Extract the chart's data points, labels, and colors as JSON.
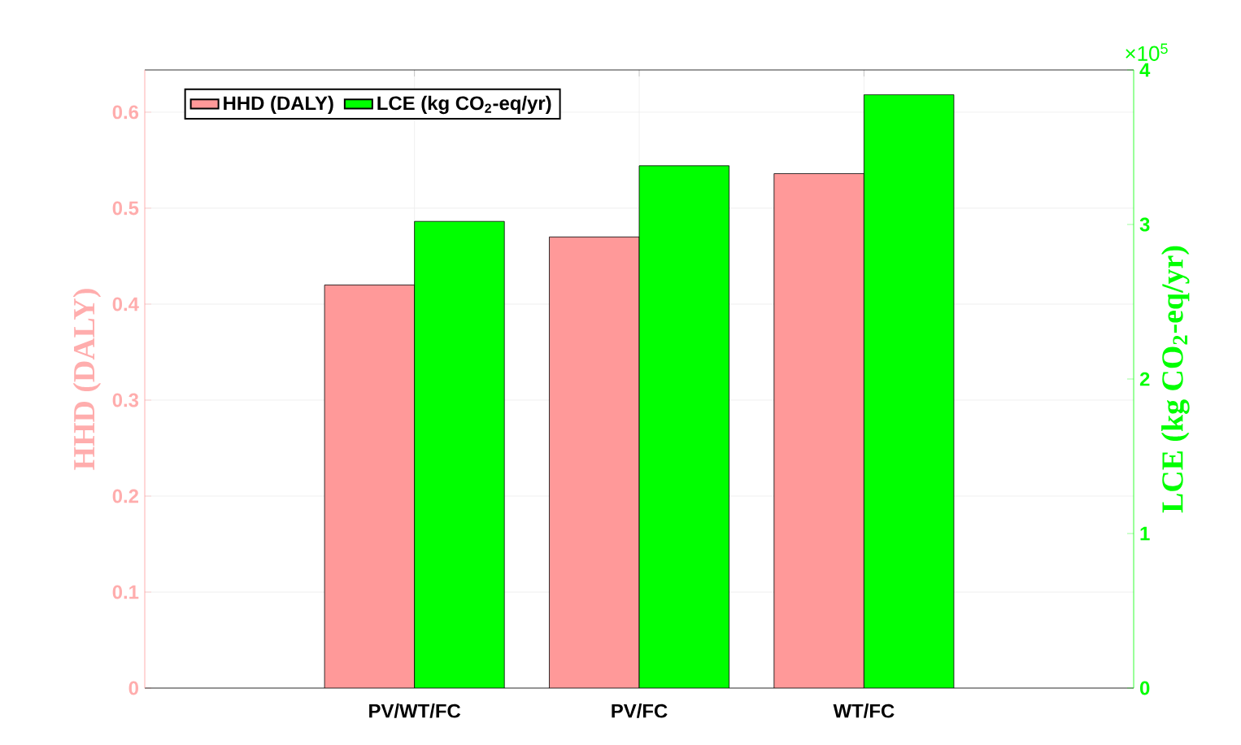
{
  "chart_data": {
    "type": "bar",
    "categories": [
      null,
      "PV/WT/FC",
      "PV/FC",
      "WT/FC",
      null
    ],
    "series": [
      {
        "name": "HHD (DALY)",
        "color": "#ff9999",
        "values": [
          null,
          0.42,
          0.47,
          0.536,
          null
        ]
      },
      {
        "name": "LCE (kg CO$_{2}$-eq/yr)",
        "color": "#00ff00",
        "axis": "y2",
        "values": [
          null,
          3.02,
          3.38,
          3.84,
          null
        ]
      }
    ],
    "ylabel": "HHD (DALY)",
    "y2label": "LCE (kg CO$_{2}$-eq/yr)",
    "ylim": [
      0,
      0.644
    ],
    "yticks": [
      0,
      0.1,
      0.2,
      0.3,
      0.4,
      0.5,
      0.6
    ],
    "y2lim": [
      0,
      4
    ],
    "y2ticks": [
      0,
      1,
      2,
      3,
      4
    ],
    "annotations": [
      "×10$^{5}$"
    ],
    "grid": true,
    "legend": "top left"
  }
}
